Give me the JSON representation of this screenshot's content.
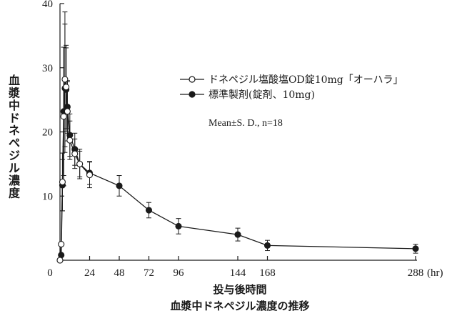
{
  "chart_data": {
    "type": "line",
    "caption": "血漿中ドネペジル濃度の推移",
    "xlabel": "投与後時間",
    "x_unit": "(hr)",
    "ylabel": "血漿中ドネペジル濃度",
    "xlim": [
      0,
      288
    ],
    "ylim": [
      0,
      40
    ],
    "x_ticks": [
      0,
      24,
      48,
      72,
      96,
      144,
      168,
      288
    ],
    "y_ticks": [
      10,
      20,
      30,
      40
    ],
    "x_tick_labels": [
      "0",
      "24",
      "48",
      "72",
      "96",
      "144",
      "168",
      "288"
    ],
    "y_tick_labels": [
      "10",
      "20",
      "30",
      "40"
    ],
    "annotation": "Mean±S. D., n=18",
    "legend_position": "top-right",
    "series": [
      {
        "name": "ドネペジル塩酸塩OD錠10mg「オーハラ」",
        "marker": "open-circle",
        "x": [
          0,
          1,
          2,
          3,
          4,
          5,
          6,
          8,
          12,
          16,
          24
        ],
        "y": [
          0,
          2.5,
          12.2,
          22.4,
          28.2,
          27.0,
          23.2,
          18.7,
          16.6,
          15.0,
          13.3
        ],
        "sd": [
          0,
          0,
          4.5,
          10.8,
          10.5,
          6.5,
          4.6,
          3.0,
          2.3,
          2.3,
          2.0
        ]
      },
      {
        "name": "標準製剤(錠剤、10mg)",
        "marker": "filled-circle",
        "x": [
          0,
          1,
          2,
          3,
          4,
          5,
          6,
          8,
          12,
          16,
          24,
          48,
          72,
          96,
          144,
          168,
          288
        ],
        "y": [
          0,
          0.8,
          11.7,
          23.2,
          26.8,
          26.6,
          23.9,
          19.5,
          17.3,
          15.0,
          13.6,
          11.6,
          7.8,
          5.3,
          4.0,
          2.3,
          1.8
        ],
        "sd": [
          0,
          0,
          4.0,
          10.0,
          10.0,
          6.5,
          4.1,
          3.3,
          2.5,
          2.0,
          1.8,
          1.6,
          1.2,
          1.2,
          1.0,
          0.8,
          0.7
        ]
      }
    ]
  }
}
